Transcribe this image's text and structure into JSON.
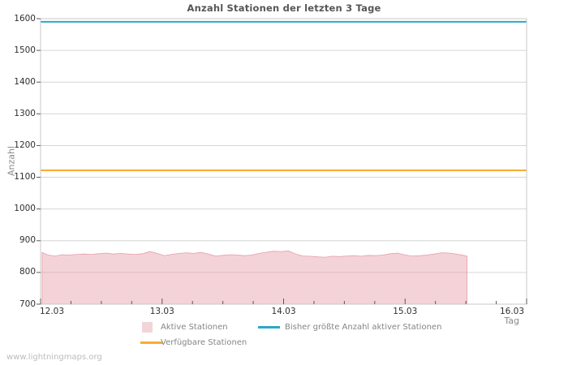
{
  "window": {
    "watermark": "www.lightningmaps.org"
  },
  "chart": {
    "title": "Anzahl Stationen der letzten 3 Tage",
    "y_axis_label": "Anzahl",
    "x_axis_label": "Tag"
  },
  "legend": {
    "items": [
      {
        "label": "Aktive Stationen",
        "swatch": "area",
        "color": "#f2d5d9"
      },
      {
        "label": "Bisher größte Anzahl aktiver Stationen",
        "swatch": "line",
        "color": "#29a8c8"
      },
      {
        "label": "Verfügbare Stationen",
        "swatch": "line",
        "color": "#fbab30"
      }
    ]
  },
  "chart_data": {
    "type": "area",
    "title": "Anzahl Stationen der letzten 3 Tage",
    "xlabel": "Tag",
    "ylabel": "Anzahl",
    "ylim": [
      700,
      1600
    ],
    "y_ticks": [
      700,
      800,
      900,
      1000,
      1100,
      1200,
      1300,
      1400,
      1500,
      1600
    ],
    "x_range_days": [
      0,
      4
    ],
    "x_tick_labels": [
      "12.03",
      "13.03",
      "14.03",
      "15.03",
      "16.03"
    ],
    "x_minor_tick_step_days": 0.25,
    "grid": "horizontal",
    "legend_position": "bottom",
    "colors": {
      "area_fill": "rgba(231,158,169,0.45)",
      "area_edge": "rgba(224,146,158,0.85)",
      "max_line": "#29a8c8",
      "available_line": "#fbab30",
      "gridline": "#d6d6d6",
      "plot_border": "#c8c8c8",
      "tick": "#595959"
    },
    "series": [
      {
        "name": "Aktive Stationen",
        "type": "area",
        "points": [
          [
            0.013,
            863
          ],
          [
            0.06,
            855
          ],
          [
            0.12,
            852
          ],
          [
            0.18,
            856
          ],
          [
            0.24,
            855
          ],
          [
            0.3,
            857
          ],
          [
            0.36,
            858
          ],
          [
            0.42,
            857
          ],
          [
            0.48,
            859
          ],
          [
            0.54,
            861
          ],
          [
            0.6,
            858
          ],
          [
            0.66,
            860
          ],
          [
            0.72,
            858
          ],
          [
            0.78,
            857
          ],
          [
            0.84,
            859
          ],
          [
            0.9,
            866
          ],
          [
            0.96,
            860
          ],
          [
            1.02,
            853
          ],
          [
            1.08,
            857
          ],
          [
            1.14,
            860
          ],
          [
            1.2,
            862
          ],
          [
            1.26,
            860
          ],
          [
            1.32,
            863
          ],
          [
            1.38,
            858
          ],
          [
            1.44,
            852
          ],
          [
            1.5,
            854
          ],
          [
            1.56,
            856
          ],
          [
            1.62,
            855
          ],
          [
            1.68,
            853
          ],
          [
            1.74,
            855
          ],
          [
            1.8,
            860
          ],
          [
            1.86,
            864
          ],
          [
            1.92,
            867
          ],
          [
            1.98,
            866
          ],
          [
            2.04,
            868
          ],
          [
            2.1,
            858
          ],
          [
            2.16,
            852
          ],
          [
            2.22,
            851
          ],
          [
            2.28,
            849
          ],
          [
            2.34,
            848
          ],
          [
            2.4,
            851
          ],
          [
            2.46,
            850
          ],
          [
            2.52,
            852
          ],
          [
            2.58,
            853
          ],
          [
            2.64,
            851
          ],
          [
            2.7,
            854
          ],
          [
            2.76,
            853
          ],
          [
            2.82,
            855
          ],
          [
            2.88,
            859
          ],
          [
            2.94,
            861
          ],
          [
            3.0,
            855
          ],
          [
            3.06,
            852
          ],
          [
            3.12,
            853
          ],
          [
            3.18,
            855
          ],
          [
            3.24,
            858
          ],
          [
            3.3,
            862
          ],
          [
            3.36,
            861
          ],
          [
            3.42,
            858
          ],
          [
            3.48,
            854
          ],
          [
            3.51,
            851
          ]
        ]
      },
      {
        "name": "Bisher größte Anzahl aktiver Stationen",
        "type": "hline",
        "value": 1590
      },
      {
        "name": "Verfügbare Stationen",
        "type": "hline",
        "value": 1122
      }
    ]
  }
}
